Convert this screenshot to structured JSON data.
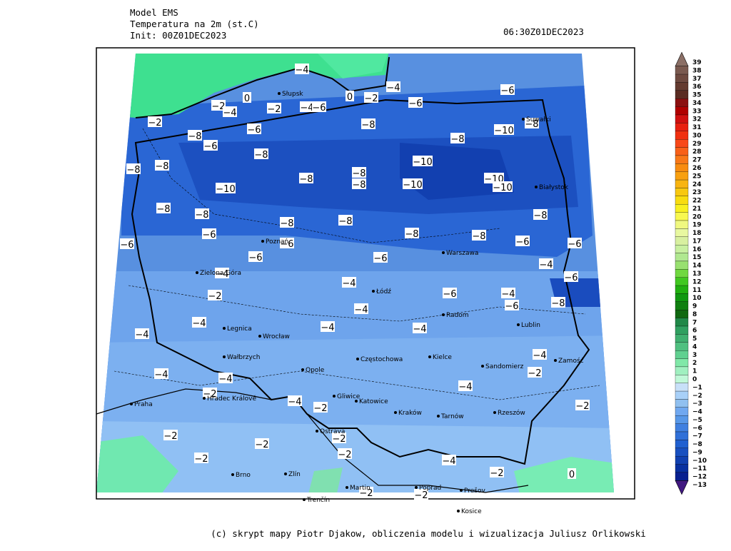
{
  "header": {
    "model": "Model EMS",
    "field": "Temperatura na 2m (st.C)",
    "init": "Init: 00Z01DEC2023",
    "valid": "06:30Z01DEC2023"
  },
  "footer": "(c) skrypt mapy Piotr Djakow, obliczenia modelu i wizualizacja Juliusz Orlikowski",
  "colorbar": [
    {
      "label": "39",
      "color": "#8b6f66"
    },
    {
      "label": "38",
      "color": "#7a5a50"
    },
    {
      "label": "37",
      "color": "#6e4a40"
    },
    {
      "label": "36",
      "color": "#643b30"
    },
    {
      "label": "35",
      "color": "#5a2c22"
    },
    {
      "label": "34",
      "color": "#8b1010"
    },
    {
      "label": "33",
      "color": "#b00000"
    },
    {
      "label": "32",
      "color": "#d01010"
    },
    {
      "label": "31",
      "color": "#e82010"
    },
    {
      "label": "30",
      "color": "#f03010"
    },
    {
      "label": "29",
      "color": "#f84818"
    },
    {
      "label": "28",
      "color": "#f86018"
    },
    {
      "label": "27",
      "color": "#f87818"
    },
    {
      "label": "26",
      "color": "#f88c10"
    },
    {
      "label": "25",
      "color": "#f8a010"
    },
    {
      "label": "24",
      "color": "#f8b410"
    },
    {
      "label": "23",
      "color": "#f8c810"
    },
    {
      "label": "22",
      "color": "#f8dc10"
    },
    {
      "label": "21",
      "color": "#f8f020"
    },
    {
      "label": "20",
      "color": "#f8f850"
    },
    {
      "label": "19",
      "color": "#f0f880"
    },
    {
      "label": "18",
      "color": "#e8f8a0"
    },
    {
      "label": "17",
      "color": "#d8f0a0"
    },
    {
      "label": "16",
      "color": "#c8f0a0"
    },
    {
      "label": "15",
      "color": "#b0e890"
    },
    {
      "label": "14",
      "color": "#98e070"
    },
    {
      "label": "13",
      "color": "#70d840"
    },
    {
      "label": "12",
      "color": "#40c820"
    },
    {
      "label": "11",
      "color": "#20b010"
    },
    {
      "label": "10",
      "color": "#109810"
    },
    {
      "label": "9",
      "color": "#108010"
    },
    {
      "label": "8",
      "color": "#106810"
    },
    {
      "label": "7",
      "color": "#208848"
    },
    {
      "label": "6",
      "color": "#30a060"
    },
    {
      "label": "5",
      "color": "#40b070"
    },
    {
      "label": "4",
      "color": "#50c080"
    },
    {
      "label": "3",
      "color": "#60d090"
    },
    {
      "label": "2",
      "color": "#80e8a8"
    },
    {
      "label": "1",
      "color": "#a0f0c0"
    },
    {
      "label": "0",
      "color": "#c0f8d8"
    },
    {
      "label": "−1",
      "color": "#c8e0f8"
    },
    {
      "label": "−2",
      "color": "#a8d0f8"
    },
    {
      "label": "−3",
      "color": "#90c0f0"
    },
    {
      "label": "−4",
      "color": "#70a8f0"
    },
    {
      "label": "−5",
      "color": "#5898e8"
    },
    {
      "label": "−6",
      "color": "#4080e0"
    },
    {
      "label": "−7",
      "color": "#3070d8"
    },
    {
      "label": "−8",
      "color": "#2060d0"
    },
    {
      "label": "−9",
      "color": "#1850c0"
    },
    {
      "label": "−10",
      "color": "#1040b0"
    },
    {
      "label": "−11",
      "color": "#0830a0"
    },
    {
      "label": "−12",
      "color": "#082090"
    },
    {
      "label": "−13",
      "color": "#401880"
    }
  ],
  "cities": [
    "Słupsk",
    "Poznań",
    "Zielona Góra",
    "Łódź",
    "Radom",
    "Lublin",
    "Legnica",
    "Wrocław",
    "Wałbrzych",
    "Opole",
    "Częstochowa",
    "Kielce",
    "Sandomierz",
    "Zamość",
    "Gliwice",
    "Katowice",
    "Kraków",
    "Tarnów",
    "Rzeszów",
    "Praha",
    "Hradec Králové",
    "Ostrava",
    "Brno",
    "Zlín",
    "Martin",
    "Poprad",
    "Prešov",
    "Trenčín",
    "Kosice",
    "Białystok",
    "Suwałki",
    "Warszawa"
  ],
  "contour_labels": [
    "−4",
    "0",
    "−2",
    "−4",
    "−6",
    "0",
    "−2",
    "−4",
    "−2",
    "−4",
    "−6",
    "−6",
    "−2",
    "−6",
    "−8",
    "−10",
    "−8",
    "−8",
    "−6",
    "−8",
    "−8",
    "−8",
    "−8",
    "−10",
    "−8",
    "−8",
    "−8",
    "−10",
    "−10",
    "−10",
    "−10",
    "−8",
    "−8",
    "−8",
    "−8",
    "−8",
    "−6",
    "−6",
    "−8",
    "−8",
    "−6",
    "−6",
    "−6",
    "−6",
    "−6",
    "−4",
    "−6",
    "−4",
    "−4",
    "−2",
    "−6",
    "−4",
    "−6",
    "−8",
    "−4",
    "−4",
    "−4",
    "−4",
    "−4",
    "−4",
    "−4",
    "−2",
    "−4",
    "−2",
    "−4",
    "−4",
    "−2",
    "−2",
    "−2",
    "−2",
    "−2",
    "−2",
    "−2",
    "−4",
    "−2",
    "0",
    "−2",
    "−2"
  ]
}
